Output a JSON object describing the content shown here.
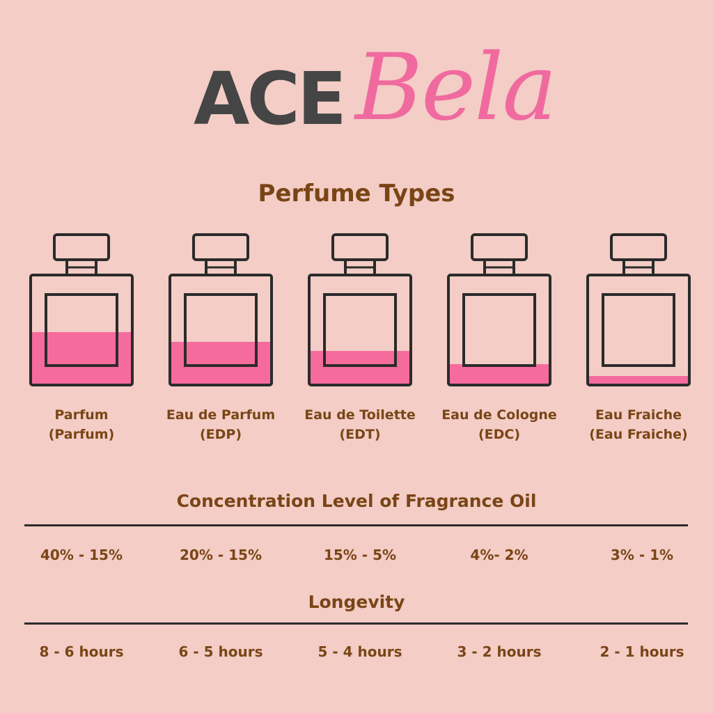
{
  "brand": {
    "part1": "ACE",
    "part2": "Bela",
    "color_dark": "#454545",
    "color_pink": "#f06a9f"
  },
  "title": "Perfume Types",
  "colors": {
    "fill": "#f56b9c",
    "outline": "#2b2b2b",
    "text": "#7a4516",
    "background": "#f3cdc6"
  },
  "types": [
    {
      "name": "Parfum",
      "sub": "(Parfum)",
      "fill_level": 0.48,
      "concentration": "40% - 15%",
      "longevity": "8 - 6 hours"
    },
    {
      "name": "Eau de Parfum",
      "sub": "(EDP)",
      "fill_level": 0.39,
      "concentration": "20% - 15%",
      "longevity": "6 - 5 hours"
    },
    {
      "name": "Eau de Toilette",
      "sub": "(EDT)",
      "fill_level": 0.31,
      "concentration": "15% - 5%",
      "longevity": "5 - 4 hours"
    },
    {
      "name": "Eau de Cologne",
      "sub": "(EDC)",
      "fill_level": 0.19,
      "concentration": "4%- 2%",
      "longevity": "3 - 2 hours"
    },
    {
      "name": "Eau Fraiche",
      "sub": "(Eau Fraiche)",
      "fill_level": 0.08,
      "concentration": "3% - 1%",
      "longevity": "2 - 1 hours"
    }
  ],
  "concentration_title": "Concentration Level of Fragrance Oil",
  "longevity_title": "Longevity"
}
